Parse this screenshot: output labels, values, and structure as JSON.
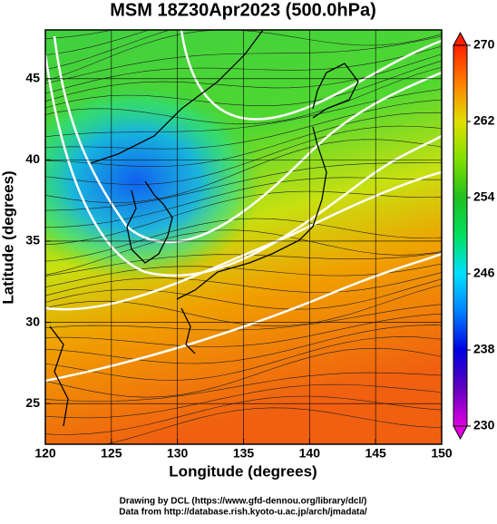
{
  "title": "MSM 18Z30Apr2023 (500.0hPa)",
  "map": {
    "xlabel": "Longitude (degrees)",
    "ylabel": "Latitude  (degrees)",
    "xlim": [
      120,
      150
    ],
    "xticks": [
      120,
      125,
      130,
      135,
      140,
      145,
      150
    ],
    "ylim": [
      22.5,
      48
    ],
    "yticks": [
      25,
      30,
      35,
      40,
      45
    ]
  },
  "colorbar": {
    "lim": [
      230,
      270
    ],
    "ticks": [
      230,
      238,
      246,
      254,
      262,
      270
    ]
  },
  "footer": [
    "Drawing by DCL (https://www.gfd-dennou.org/library/dcl/)",
    "Data from http://database.rish.kyoto-u.ac.jp/arch/jmadata/"
  ]
}
